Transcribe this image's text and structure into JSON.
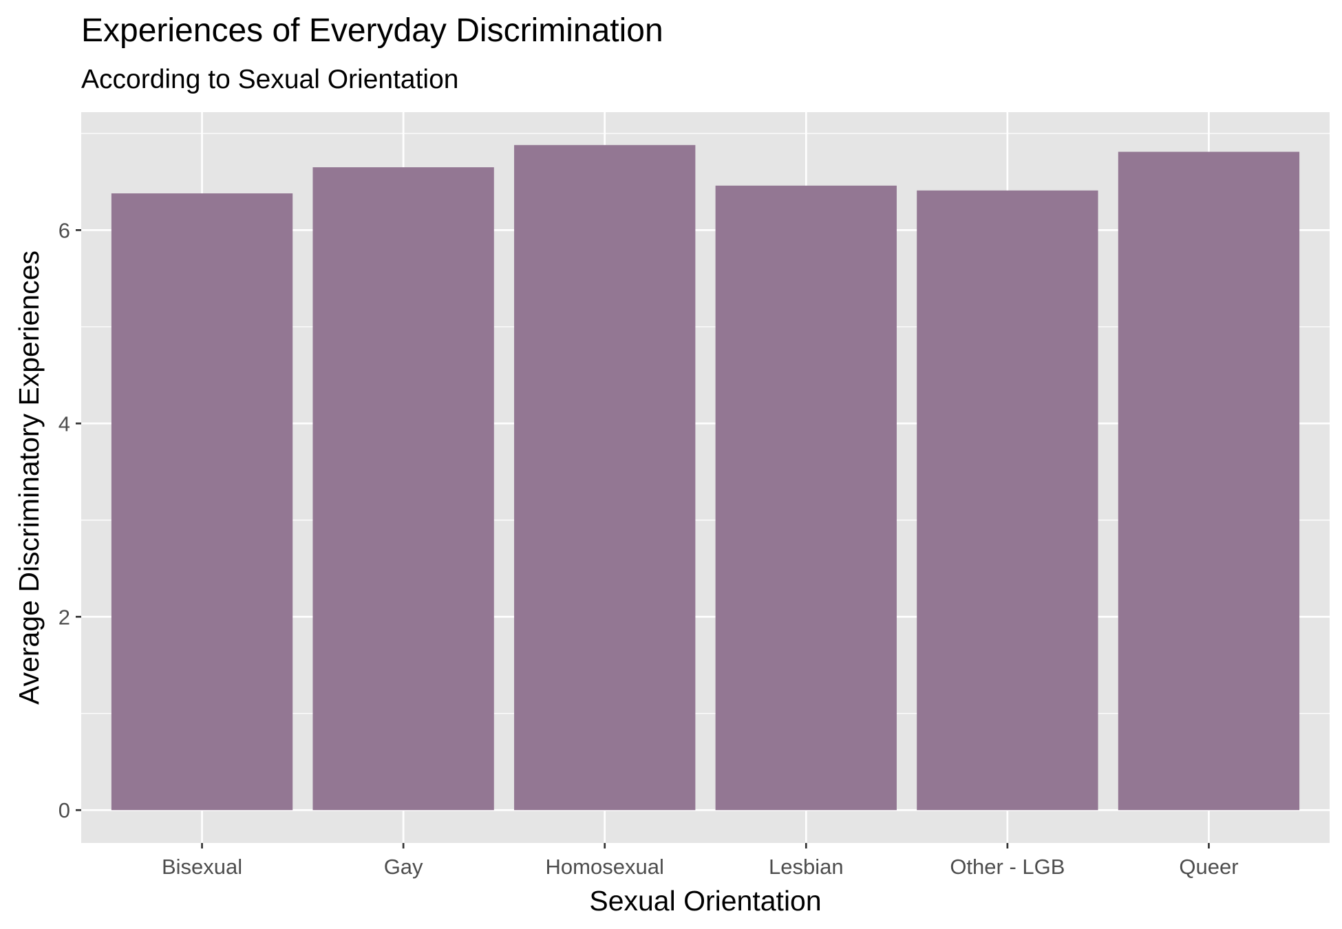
{
  "chart_data": {
    "type": "bar",
    "title": "Experiences of Everyday Discrimination",
    "subtitle": "According to Sexual Orientation",
    "xlabel": "Sexual Orientation",
    "ylabel": "Average Discriminatory Experiences",
    "categories": [
      "Bisexual",
      "Gay",
      "Homosexual",
      "Lesbian",
      "Other - LGB",
      "Queer"
    ],
    "values": [
      6.38,
      6.65,
      6.88,
      6.46,
      6.41,
      6.81
    ],
    "ylim": [
      -0.34,
      7.22
    ],
    "yticks": [
      0,
      2,
      4,
      6
    ],
    "ytick_labels": [
      "0",
      "2",
      "4",
      "6"
    ],
    "grid": true,
    "legend": "none",
    "colors": {
      "bar": "#937793",
      "panel": "#e5e5e5",
      "grid": "#ffffff",
      "tick": "#333333"
    }
  }
}
